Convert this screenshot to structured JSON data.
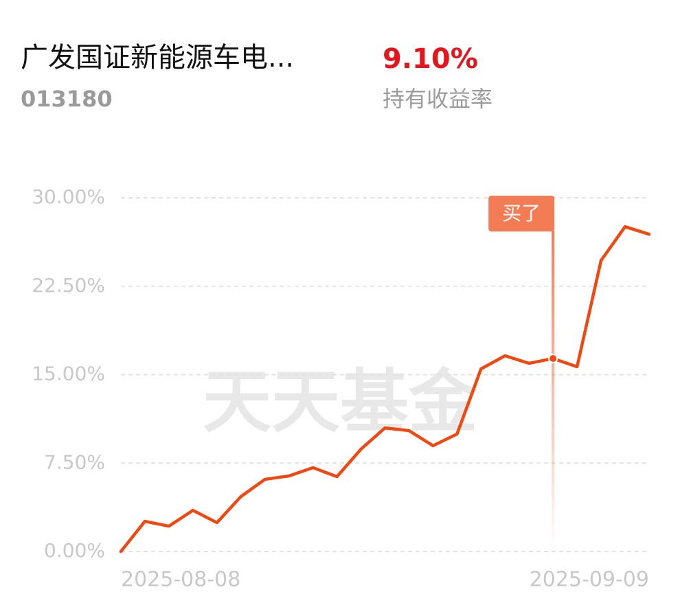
{
  "header": {
    "title": "广发国证新能源车电...",
    "code": "013180",
    "return_value": "9.10%",
    "return_label": "持有收益率"
  },
  "chart_data": {
    "type": "line",
    "categories": [
      "2025-08-08",
      null,
      null,
      null,
      null,
      null,
      null,
      null,
      null,
      null,
      null,
      null,
      null,
      null,
      null,
      null,
      null,
      null,
      null,
      null,
      null,
      null,
      "2025-09-09"
    ],
    "series": [
      {
        "color": "#f2470f",
        "values": [
          0,
          2.56,
          2.15,
          3.49,
          2.45,
          4.66,
          6.12,
          6.41,
          7.11,
          6.35,
          8.68,
          10.48,
          10.25,
          8.97,
          9.96,
          15.49,
          16.6,
          15.96,
          16.37,
          15.67,
          24.69,
          27.55,
          26.91
        ]
      }
    ],
    "ylim": [
      0,
      30
    ],
    "yticks": [
      {
        "value": 0,
        "label": "0.00%"
      },
      {
        "value": 7.5,
        "label": "7.50%"
      },
      {
        "value": 15,
        "label": "15.00%"
      },
      {
        "value": 22.5,
        "label": "22.50%"
      },
      {
        "value": 30,
        "label": "30.00%"
      }
    ],
    "grid": true,
    "annotations": [
      {
        "text": "买了",
        "point": 18
      }
    ],
    "watermark": "天天基金"
  }
}
